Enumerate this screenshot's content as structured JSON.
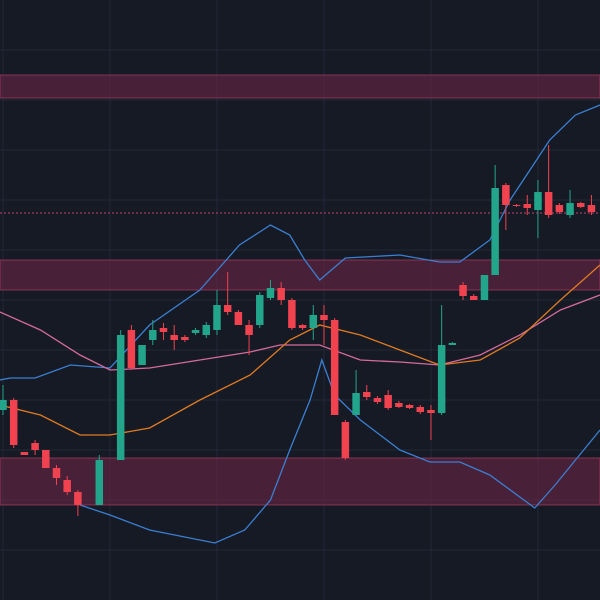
{
  "chart_data": {
    "type": "candlestick",
    "x": [
      0,
      1,
      2,
      3,
      4,
      5,
      6,
      7,
      9,
      11,
      12,
      13,
      14,
      15,
      16,
      17,
      18,
      19,
      20,
      21,
      22,
      23,
      24,
      25,
      26,
      27,
      28,
      29,
      30,
      31,
      32,
      33,
      34,
      35,
      36,
      37,
      38,
      39,
      40,
      41,
      42,
      43,
      44,
      45,
      46,
      47,
      48,
      49,
      50,
      51,
      52,
      53,
      54,
      55
    ],
    "open": [
      190,
      200,
      148,
      157,
      150,
      132,
      120,
      108,
      95,
      140,
      270,
      235,
      260,
      272,
      265,
      263,
      267,
      265,
      270,
      295,
      288,
      275,
      275,
      302,
      312,
      300,
      275,
      272,
      285,
      280,
      178,
      185,
      208,
      202,
      205,
      197,
      195,
      193,
      190,
      187,
      255,
      315,
      304,
      300,
      325,
      415,
      395,
      396,
      390,
      408,
      395,
      385,
      397,
      395
    ],
    "high": [
      215,
      202,
      148,
      160,
      150,
      135,
      124,
      110,
      145,
      270,
      275,
      255,
      280,
      277,
      275,
      265,
      272,
      278,
      310,
      328,
      290,
      280,
      308,
      320,
      318,
      302,
      276,
      295,
      295,
      282,
      180,
      230,
      215,
      204,
      210,
      199,
      196,
      195,
      195,
      295,
      258,
      318,
      306,
      325,
      435,
      417,
      396,
      405,
      420,
      455,
      397,
      410,
      398,
      405
    ],
    "low": [
      185,
      152,
      145,
      145,
      132,
      115,
      105,
      84,
      95,
      140,
      230,
      235,
      255,
      260,
      250,
      258,
      265,
      262,
      265,
      285,
      275,
      245,
      272,
      300,
      295,
      270,
      270,
      260,
      255,
      185,
      140,
      185,
      200,
      196,
      190,
      192,
      191,
      186,
      160,
      185,
      255,
      300,
      300,
      300,
      325,
      370,
      393,
      385,
      362,
      382,
      386,
      382,
      392,
      385
    ],
    "close": [
      200,
      155,
      145,
      150,
      132,
      122,
      108,
      95,
      140,
      265,
      232,
      255,
      270,
      268,
      260,
      260,
      270,
      275,
      295,
      288,
      275,
      265,
      305,
      312,
      300,
      272,
      272,
      285,
      280,
      185,
      142,
      207,
      203,
      198,
      192,
      193,
      192,
      188,
      187,
      255,
      257,
      304,
      300,
      325,
      412,
      395,
      394,
      392,
      408,
      385,
      388,
      397,
      393,
      388
    ],
    "up_color": "#22a58b",
    "down_color": "#f0434f",
    "overlays": [
      {
        "color": "#3a7fd1",
        "x": [
          -0.3,
          0.7,
          3,
          6.3,
          10,
          13.7,
          18.4,
          22.1,
          25,
          26.8,
          28.2,
          29.6,
          32,
          37.1,
          40.8,
          42.7,
          45.5,
          47.4,
          51.1,
          53.5,
          55.8
        ],
        "values": [
          220,
          222,
          222,
          235,
          232,
          275,
          310,
          355,
          375,
          365,
          340,
          320,
          342,
          345,
          338,
          338,
          360,
          400,
          460,
          485,
          495
        ]
      },
      {
        "color": "#3a7fd1",
        "x": [
          7.2,
          10,
          13.7,
          19.8,
          22.6,
          25,
          26.8,
          28.7,
          29.8,
          31,
          33.4,
          37.1,
          39.9,
          42.7,
          45.5,
          49.7,
          51.6,
          55.8
        ],
        "values": [
          95,
          85,
          70,
          57,
          70,
          100,
          150,
          200,
          240,
          205,
          180,
          150,
          138,
          138,
          125,
          92,
          115,
          170
        ]
      },
      {
        "color": "#d56a9c",
        "x": [
          -0.3,
          3.5,
          7.2,
          10,
          13.7,
          18.4,
          23.1,
          25.9,
          29.6,
          33.4,
          37.1,
          40.8,
          44.6,
          48.3,
          52.1,
          55.8
        ],
        "values": [
          288,
          270,
          245,
          230,
          232,
          240,
          248,
          255,
          255,
          240,
          238,
          235,
          245,
          265,
          290,
          305
        ]
      },
      {
        "color": "#e07b22",
        "x": [
          -0.3,
          3.5,
          7.2,
          10,
          13.7,
          18.4,
          23.1,
          26.8,
          29.6,
          33.4,
          37.1,
          40.8,
          44.6,
          48.3,
          52.1,
          55.8
        ],
        "values": [
          195,
          185,
          165,
          165,
          172,
          200,
          225,
          260,
          275,
          265,
          250,
          235,
          240,
          262,
          300,
          335
        ]
      }
    ],
    "zones": [
      [
        502,
        525
      ],
      [
        310,
        340
      ],
      [
        95,
        142
      ]
    ],
    "zone_color": "#6b2445",
    "hline": 387,
    "hline_color": "#c2416b",
    "xlim": [
      -0.28,
      55.8
    ],
    "ylim": [
      0,
      600
    ],
    "xticks": [
      0,
      10,
      20,
      30,
      40,
      50
    ],
    "yticks": [
      50,
      100,
      150,
      200,
      250,
      300,
      350,
      400,
      450,
      500,
      550
    ],
    "grid": true
  }
}
